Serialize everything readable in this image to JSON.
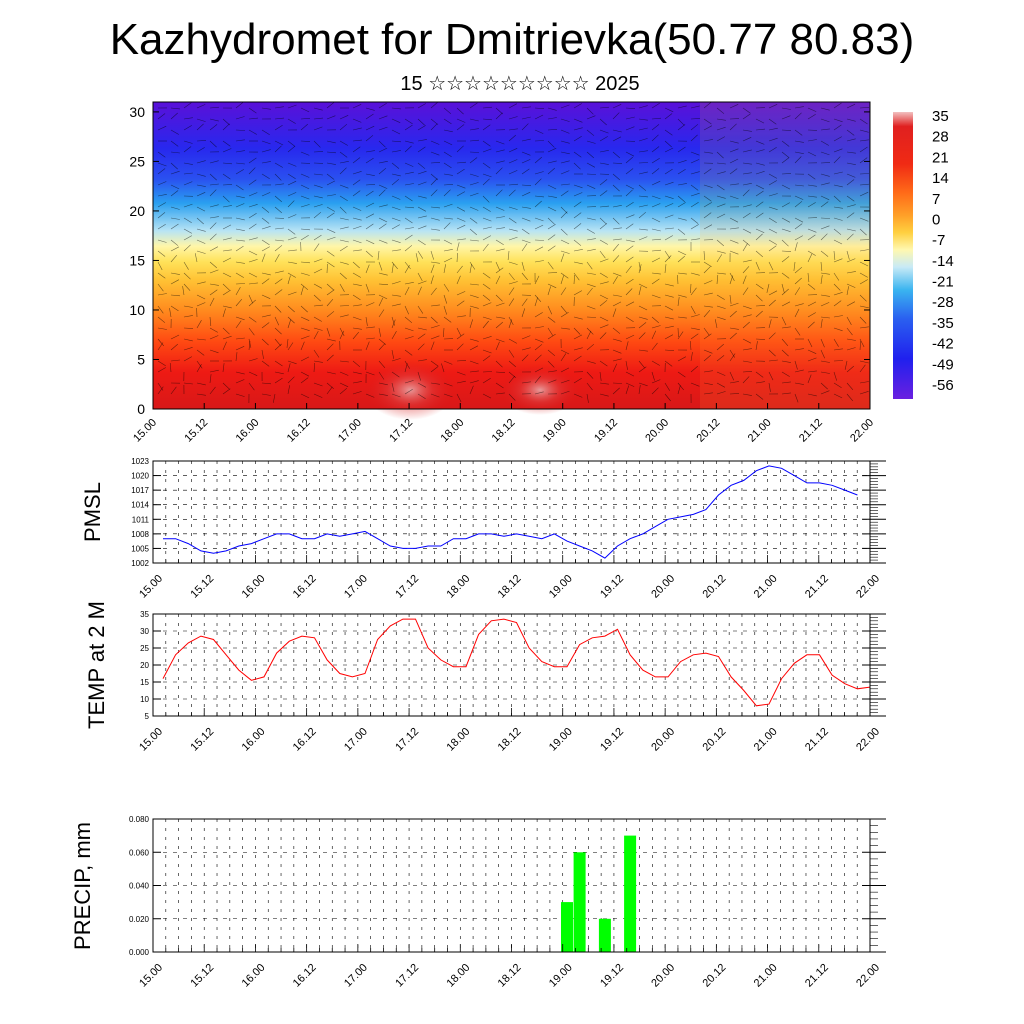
{
  "title": "Kazhydromet for Dmitrievka(50.77 80.83)",
  "subtitle": "15 ☆☆☆☆☆☆☆☆☆ 2025",
  "colors": {
    "pmsl": "#0000ff",
    "temp": "#ff0000",
    "precip": "#00ff00",
    "grid": "#000000"
  },
  "chart_data": [
    {
      "type": "heatmap",
      "title": "Kazhydromet for Dmitrievka(50.77 80.83)",
      "x_tick_labels": [
        "15.00",
        "15.12",
        "16.00",
        "16.12",
        "17.00",
        "17.12",
        "18.00",
        "18.12",
        "19.00",
        "19.12",
        "20.00",
        "20.12",
        "21.00",
        "21.12",
        "22.00"
      ],
      "y_ticks": [
        0,
        5,
        10,
        15,
        20,
        25,
        30
      ],
      "ylim": [
        0,
        31
      ],
      "colorbar_labels": [
        "35",
        "28",
        "21",
        "14",
        "7",
        "0",
        "-7",
        "-14",
        "-21",
        "-28",
        "-35",
        "-42",
        "-49",
        "-56"
      ],
      "colorbar_range": [
        -60,
        38
      ],
      "overlay": "wind barbs",
      "colormap": "rainbow white-yellow-red (warm) to cyan-blue-purple (cold)"
    },
    {
      "type": "line",
      "ylabel": "PMSL",
      "ylim": [
        1002,
        1023
      ],
      "y_ticks": [
        1002,
        1005,
        1008,
        1011,
        1014,
        1017,
        1020,
        1023
      ],
      "x_tick_labels": [
        "15.00",
        "15.12",
        "16.00",
        "16.12",
        "17.00",
        "17.12",
        "18.00",
        "18.12",
        "19.00",
        "19.12",
        "20.00",
        "20.12",
        "21.00",
        "21.12",
        "22.00"
      ],
      "step_hours": 3,
      "series": [
        {
          "values": [
            1007,
            1007,
            1006,
            1004.5,
            1004,
            1004.5,
            1005.5,
            1006,
            1007,
            1008,
            1008,
            1007,
            1007,
            1008,
            1007.5,
            1008,
            1008.5,
            1007,
            1005.5,
            1005,
            1005,
            1005.5,
            1005.5,
            1007,
            1007,
            1008,
            1008,
            1007.5,
            1008,
            1007.5,
            1007,
            1008,
            1006.5,
            1005.5,
            1004.5,
            1003,
            1005.5,
            1007,
            1008,
            1009.5,
            1011,
            1011.5,
            1012,
            1013,
            1016,
            1018,
            1019,
            1021,
            1022,
            1021.5,
            1020,
            1018.5,
            1018.5,
            1018,
            1017,
            1016
          ]
        }
      ]
    },
    {
      "type": "line",
      "ylabel": "TEMP at 2 M",
      "ylim": [
        5,
        35
      ],
      "y_ticks": [
        5,
        10,
        15,
        20,
        25,
        30,
        35
      ],
      "x_tick_labels": [
        "15.00",
        "15.12",
        "16.00",
        "16.12",
        "17.00",
        "17.12",
        "18.00",
        "18.12",
        "19.00",
        "19.12",
        "20.00",
        "20.12",
        "21.00",
        "21.12",
        "22.00"
      ],
      "step_hours": 3,
      "series": [
        {
          "values": [
            16,
            23,
            26.5,
            28.5,
            27.5,
            23,
            18.5,
            15.5,
            16.5,
            23.5,
            27,
            28.5,
            28,
            21.5,
            17.5,
            16.5,
            17.5,
            27.5,
            31.5,
            33.5,
            33.5,
            25,
            21.5,
            19.5,
            19.5,
            29,
            33,
            33.5,
            32.5,
            25,
            21,
            19.5,
            19.5,
            26,
            28,
            28.5,
            30.5,
            23,
            18.5,
            16.5,
            16.5,
            21,
            23,
            23.5,
            22.5,
            16.5,
            12.5,
            8,
            8.5,
            16,
            20.5,
            23,
            23,
            17,
            14.5,
            13,
            13.5
          ]
        }
      ]
    },
    {
      "type": "bar",
      "ylabel": "PRECIP, mm",
      "ylim": [
        0,
        0.08
      ],
      "y_tick_labels": [
        "0.000",
        "0.020",
        "0.040",
        "0.060",
        "0.080"
      ],
      "y_ticks": [
        0,
        0.02,
        0.04,
        0.06,
        0.08
      ],
      "x_tick_labels": [
        "15.00",
        "15.12",
        "16.00",
        "16.12",
        "17.00",
        "17.12",
        "18.00",
        "18.12",
        "19.00",
        "19.12",
        "20.00",
        "20.12",
        "21.00",
        "21.12",
        "22.00"
      ],
      "bars": [
        {
          "hour": 96,
          "value": 0.03
        },
        {
          "hour": 99,
          "value": 0.06
        },
        {
          "hour": 105,
          "value": 0.02
        },
        {
          "hour": 111,
          "value": 0.07
        }
      ]
    }
  ]
}
